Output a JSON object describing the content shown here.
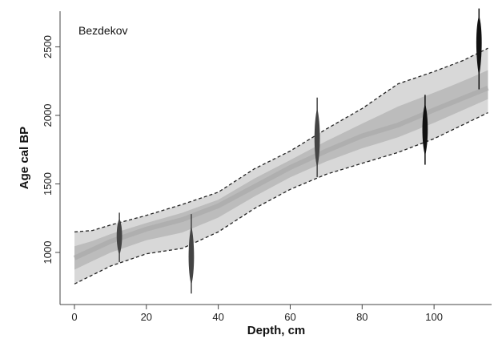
{
  "chart_data": {
    "type": "area",
    "title": "",
    "annotation": "Bezdekov",
    "xlabel": "Depth, cm",
    "ylabel": "Age cal BP",
    "xlim": [
      -4,
      116
    ],
    "ylim": [
      620,
      2760
    ],
    "x_ticks": [
      0,
      20,
      40,
      60,
      80,
      100
    ],
    "y_ticks": [
      1000,
      1500,
      2000,
      2500
    ],
    "grid": false,
    "legend": "none",
    "colors": {
      "envelope": "#9a9a9a",
      "dashed_bounds": "#222222",
      "dates": "#444444",
      "outlier_dates": "#111111"
    },
    "series": [
      {
        "values": [
          {
            "x": 0,
            "y": 960
          },
          {
            "x": 10,
            "y": 1080
          },
          {
            "x": 20,
            "y": 1170
          },
          {
            "x": 30,
            "y": 1240
          },
          {
            "x": 40,
            "y": 1340
          },
          {
            "x": 50,
            "y": 1480
          },
          {
            "x": 60,
            "y": 1620
          },
          {
            "x": 70,
            "y": 1740
          },
          {
            "x": 80,
            "y": 1850
          },
          {
            "x": 90,
            "y": 1930
          },
          {
            "x": 100,
            "y": 2040
          },
          {
            "x": 115,
            "y": 2200
          }
        ]
      },
      {
        "values": [
          {
            "x": 0,
            "y": 1150
          },
          {
            "x": 5,
            "y": 1160
          },
          {
            "x": 10,
            "y": 1200
          },
          {
            "x": 20,
            "y": 1270
          },
          {
            "x": 30,
            "y": 1350
          },
          {
            "x": 40,
            "y": 1440
          },
          {
            "x": 50,
            "y": 1610
          },
          {
            "x": 60,
            "y": 1740
          },
          {
            "x": 70,
            "y": 1900
          },
          {
            "x": 80,
            "y": 2050
          },
          {
            "x": 90,
            "y": 2230
          },
          {
            "x": 100,
            "y": 2320
          },
          {
            "x": 108,
            "y": 2400
          },
          {
            "x": 115,
            "y": 2490
          }
        ]
      },
      {
        "values": [
          {
            "x": 0,
            "y": 770
          },
          {
            "x": 10,
            "y": 900
          },
          {
            "x": 20,
            "y": 990
          },
          {
            "x": 30,
            "y": 1030
          },
          {
            "x": 40,
            "y": 1150
          },
          {
            "x": 50,
            "y": 1320
          },
          {
            "x": 60,
            "y": 1460
          },
          {
            "x": 70,
            "y": 1570
          },
          {
            "x": 80,
            "y": 1650
          },
          {
            "x": 90,
            "y": 1730
          },
          {
            "x": 100,
            "y": 1830
          },
          {
            "x": 115,
            "y": 2020
          }
        ]
      }
    ],
    "dates": [
      {
        "depth": 12.5,
        "age_mean": 1130,
        "age_min": 930,
        "age_max": 1290
      },
      {
        "depth": 32.5,
        "age_mean": 950,
        "age_min": 700,
        "age_max": 1280
      },
      {
        "depth": 67.5,
        "age_mean": 1830,
        "age_min": 1550,
        "age_max": 2130
      },
      {
        "depth": 97.5,
        "age_mean": 1900,
        "age_min": 1640,
        "age_max": 2150
      },
      {
        "depth": 112.5,
        "age_mean": 2570,
        "age_min": 2190,
        "age_max": 2780
      }
    ]
  }
}
